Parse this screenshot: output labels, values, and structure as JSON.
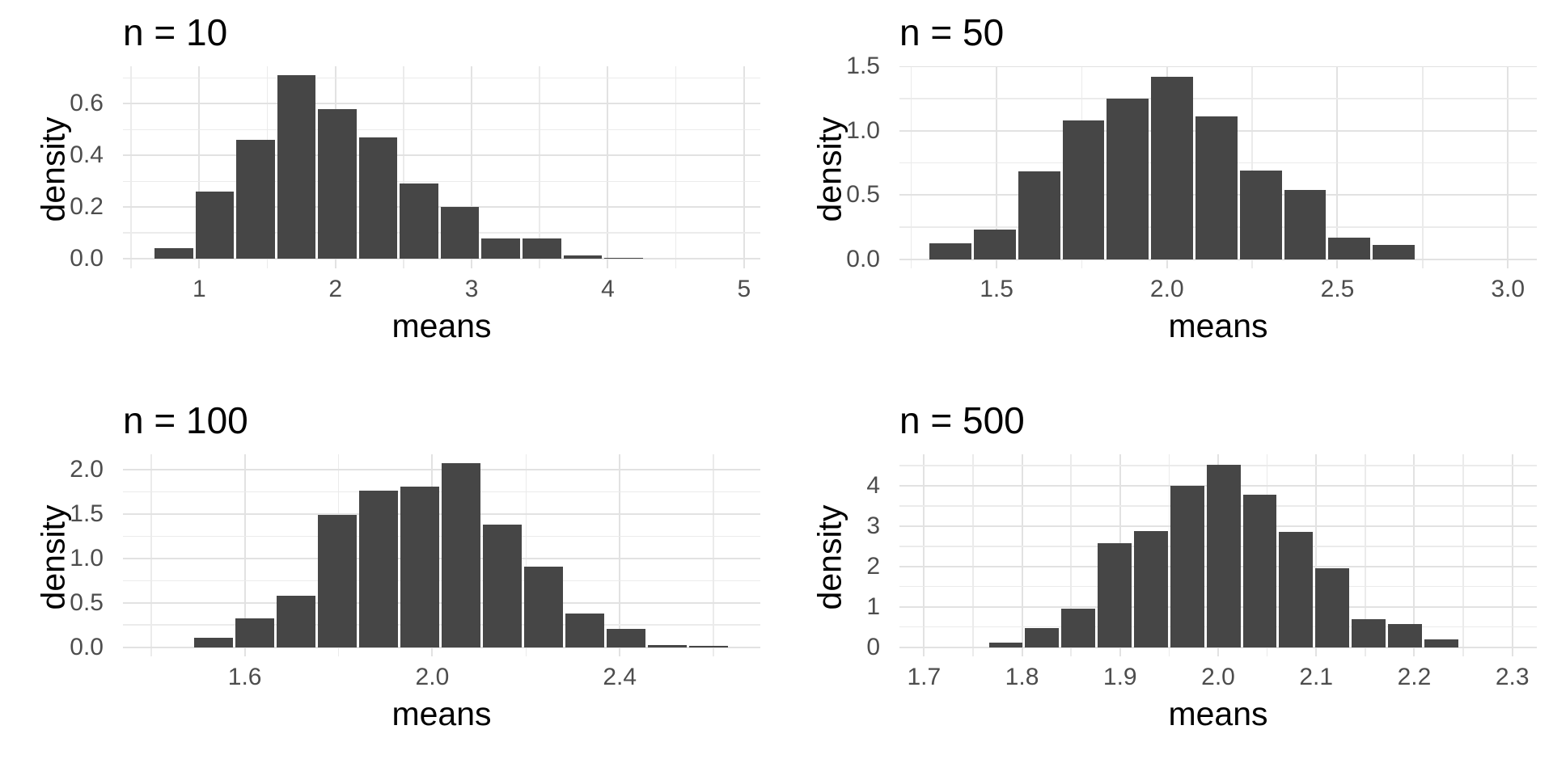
{
  "figure": {
    "background": "#FFFFFF",
    "columns": 2,
    "rows": 2
  },
  "colors": {
    "bar_fill": "#464646",
    "grid_major": "#E2E2E2",
    "grid_minor": "#EBEBEB",
    "tick_label": "#4D4D4D",
    "title": "#000000",
    "axis_title": "#000000",
    "panel_background": "#FFFFFF"
  },
  "chart_data": [
    {
      "type": "bar",
      "subtype": "histogram",
      "title": "n = 10",
      "xlabel": "means",
      "ylabel": "density",
      "xlim": [
        0.44,
        5.12
      ],
      "ylim": [
        -0.037,
        0.745
      ],
      "grid": true,
      "legend": false,
      "bins": {
        "start": 0.665,
        "width": 0.3
      },
      "densities": [
        0.04,
        0.26,
        0.46,
        0.71,
        0.58,
        0.47,
        0.29,
        0.2,
        0.08,
        0.08,
        0.012,
        0.004
      ],
      "x_ticks": {
        "major": [
          1,
          2,
          3,
          4,
          5
        ],
        "labels": [
          "1",
          "2",
          "3",
          "4",
          "5"
        ],
        "minor": [
          0.5,
          1.5,
          2.5,
          3.5,
          4.5
        ]
      },
      "y_ticks": {
        "major": [
          0,
          0.2,
          0.4,
          0.6
        ],
        "labels": [
          "0.0",
          "0.2",
          "0.4",
          "0.6"
        ],
        "minor": [
          0.1,
          0.3,
          0.5,
          0.7
        ]
      }
    },
    {
      "type": "bar",
      "subtype": "histogram",
      "title": "n = 50",
      "xlabel": "means",
      "ylabel": "density",
      "xlim": [
        1.215,
        3.085
      ],
      "ylim": [
        -0.072,
        1.5
      ],
      "grid": true,
      "legend": false,
      "bins": {
        "start": 1.3,
        "width": 0.13
      },
      "densities": [
        0.12,
        0.23,
        0.68,
        1.08,
        1.25,
        1.42,
        1.11,
        0.69,
        0.54,
        0.17,
        0.11
      ],
      "x_ticks": {
        "major": [
          1.5,
          2.0,
          2.5,
          3.0
        ],
        "labels": [
          "1.5",
          "2.0",
          "2.5",
          "3.0"
        ],
        "minor": [
          1.25,
          1.75,
          2.25,
          2.75
        ]
      },
      "y_ticks": {
        "major": [
          0,
          0.5,
          1.0,
          1.5
        ],
        "labels": [
          "0.0",
          "0.5",
          "1.0",
          "1.5"
        ],
        "minor": [
          0.25,
          0.75,
          1.25
        ]
      }
    },
    {
      "type": "bar",
      "subtype": "histogram",
      "title": "n = 100",
      "xlabel": "means",
      "ylabel": "density",
      "xlim": [
        1.34,
        2.7
      ],
      "ylim": [
        -0.104,
        2.174
      ],
      "grid": true,
      "legend": false,
      "bins": {
        "start": 1.49,
        "width": 0.088
      },
      "densities": [
        0.11,
        0.32,
        0.58,
        1.49,
        1.76,
        1.81,
        2.07,
        1.38,
        0.91,
        0.38,
        0.21,
        0.028,
        0.012
      ],
      "x_ticks": {
        "major": [
          1.6,
          2.0,
          2.4
        ],
        "labels": [
          "1.6",
          "2.0",
          "2.4"
        ],
        "minor": [
          1.4,
          1.8,
          2.2,
          2.6
        ]
      },
      "y_ticks": {
        "major": [
          0,
          0.5,
          1.0,
          1.5,
          2.0
        ],
        "labels": [
          "0.0",
          "0.5",
          "1.0",
          "1.5",
          "2.0"
        ],
        "minor": [
          0.25,
          0.75,
          1.25,
          1.75
        ]
      }
    },
    {
      "type": "bar",
      "subtype": "histogram",
      "title": "n = 500",
      "xlabel": "means",
      "ylabel": "density",
      "xlim": [
        1.675,
        2.325
      ],
      "ylim": [
        -0.228,
        4.78
      ],
      "grid": true,
      "legend": false,
      "bins": {
        "start": 1.765,
        "width": 0.037
      },
      "densities": [
        0.12,
        0.48,
        0.95,
        2.58,
        2.88,
        4.0,
        4.52,
        3.78,
        2.85,
        1.95,
        0.7,
        0.58,
        0.2
      ],
      "x_ticks": {
        "major": [
          1.7,
          1.8,
          1.9,
          2.0,
          2.1,
          2.2,
          2.3
        ],
        "labels": [
          "1.7",
          "1.8",
          "1.9",
          "2.0",
          "2.1",
          "2.2",
          "2.3"
        ],
        "minor": [
          1.75,
          1.85,
          1.95,
          2.05,
          2.15,
          2.25
        ]
      },
      "y_ticks": {
        "major": [
          0,
          1,
          2,
          3,
          4
        ],
        "labels": [
          "0",
          "1",
          "2",
          "3",
          "4"
        ],
        "minor": [
          0.5,
          1.5,
          2.5,
          3.5,
          4.5
        ]
      }
    }
  ]
}
